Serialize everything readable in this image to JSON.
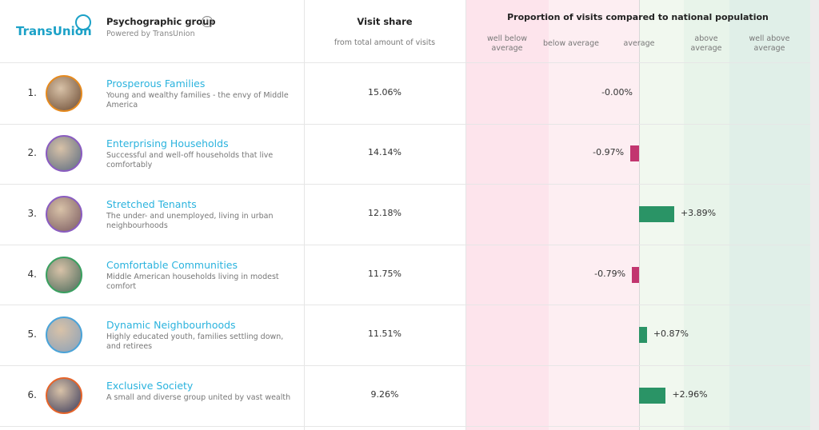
{
  "header": {
    "logo": "TransUnion",
    "group_title": "Psychographic group",
    "powered_by": "Powered by TransUnion",
    "visit_share_title": "Visit share",
    "visit_share_subtitle": "from total amount of visits",
    "proportion_title": "Proportion of visits compared to national population",
    "bands": [
      "well below average",
      "below average",
      "average",
      "above average",
      "well above average"
    ]
  },
  "rows": [
    {
      "rank": "1.",
      "name": "Prosperous Families",
      "description": "Young and wealthy families - the envy of Middle America",
      "visit_share": "15.06%",
      "diff_value": 0,
      "diff_label": "-0.00%"
    },
    {
      "rank": "2.",
      "name": "Enterprising Households",
      "description": "Successful and well-off households that live comfortably",
      "visit_share": "14.14%",
      "diff_value": -0.97,
      "diff_label": "-0.97%"
    },
    {
      "rank": "3.",
      "name": "Stretched Tenants",
      "description": "The under- and unemployed, living in urban neighbourhoods",
      "visit_share": "12.18%",
      "diff_value": 3.89,
      "diff_label": "+3.89%"
    },
    {
      "rank": "4.",
      "name": "Comfortable Communities",
      "description": "Middle American households living in modest comfort",
      "visit_share": "11.75%",
      "diff_value": -0.79,
      "diff_label": "-0.79%"
    },
    {
      "rank": "5.",
      "name": "Dynamic Neighbourhoods",
      "description": "Highly educated youth, families settling down, and retirees",
      "visit_share": "11.51%",
      "diff_value": 0.87,
      "diff_label": "+0.87%"
    },
    {
      "rank": "6.",
      "name": "Exclusive Society",
      "description": "A small and diverse group united by vast wealth",
      "visit_share": "9.26%",
      "diff_value": 2.96,
      "diff_label": "+2.96%"
    }
  ]
}
